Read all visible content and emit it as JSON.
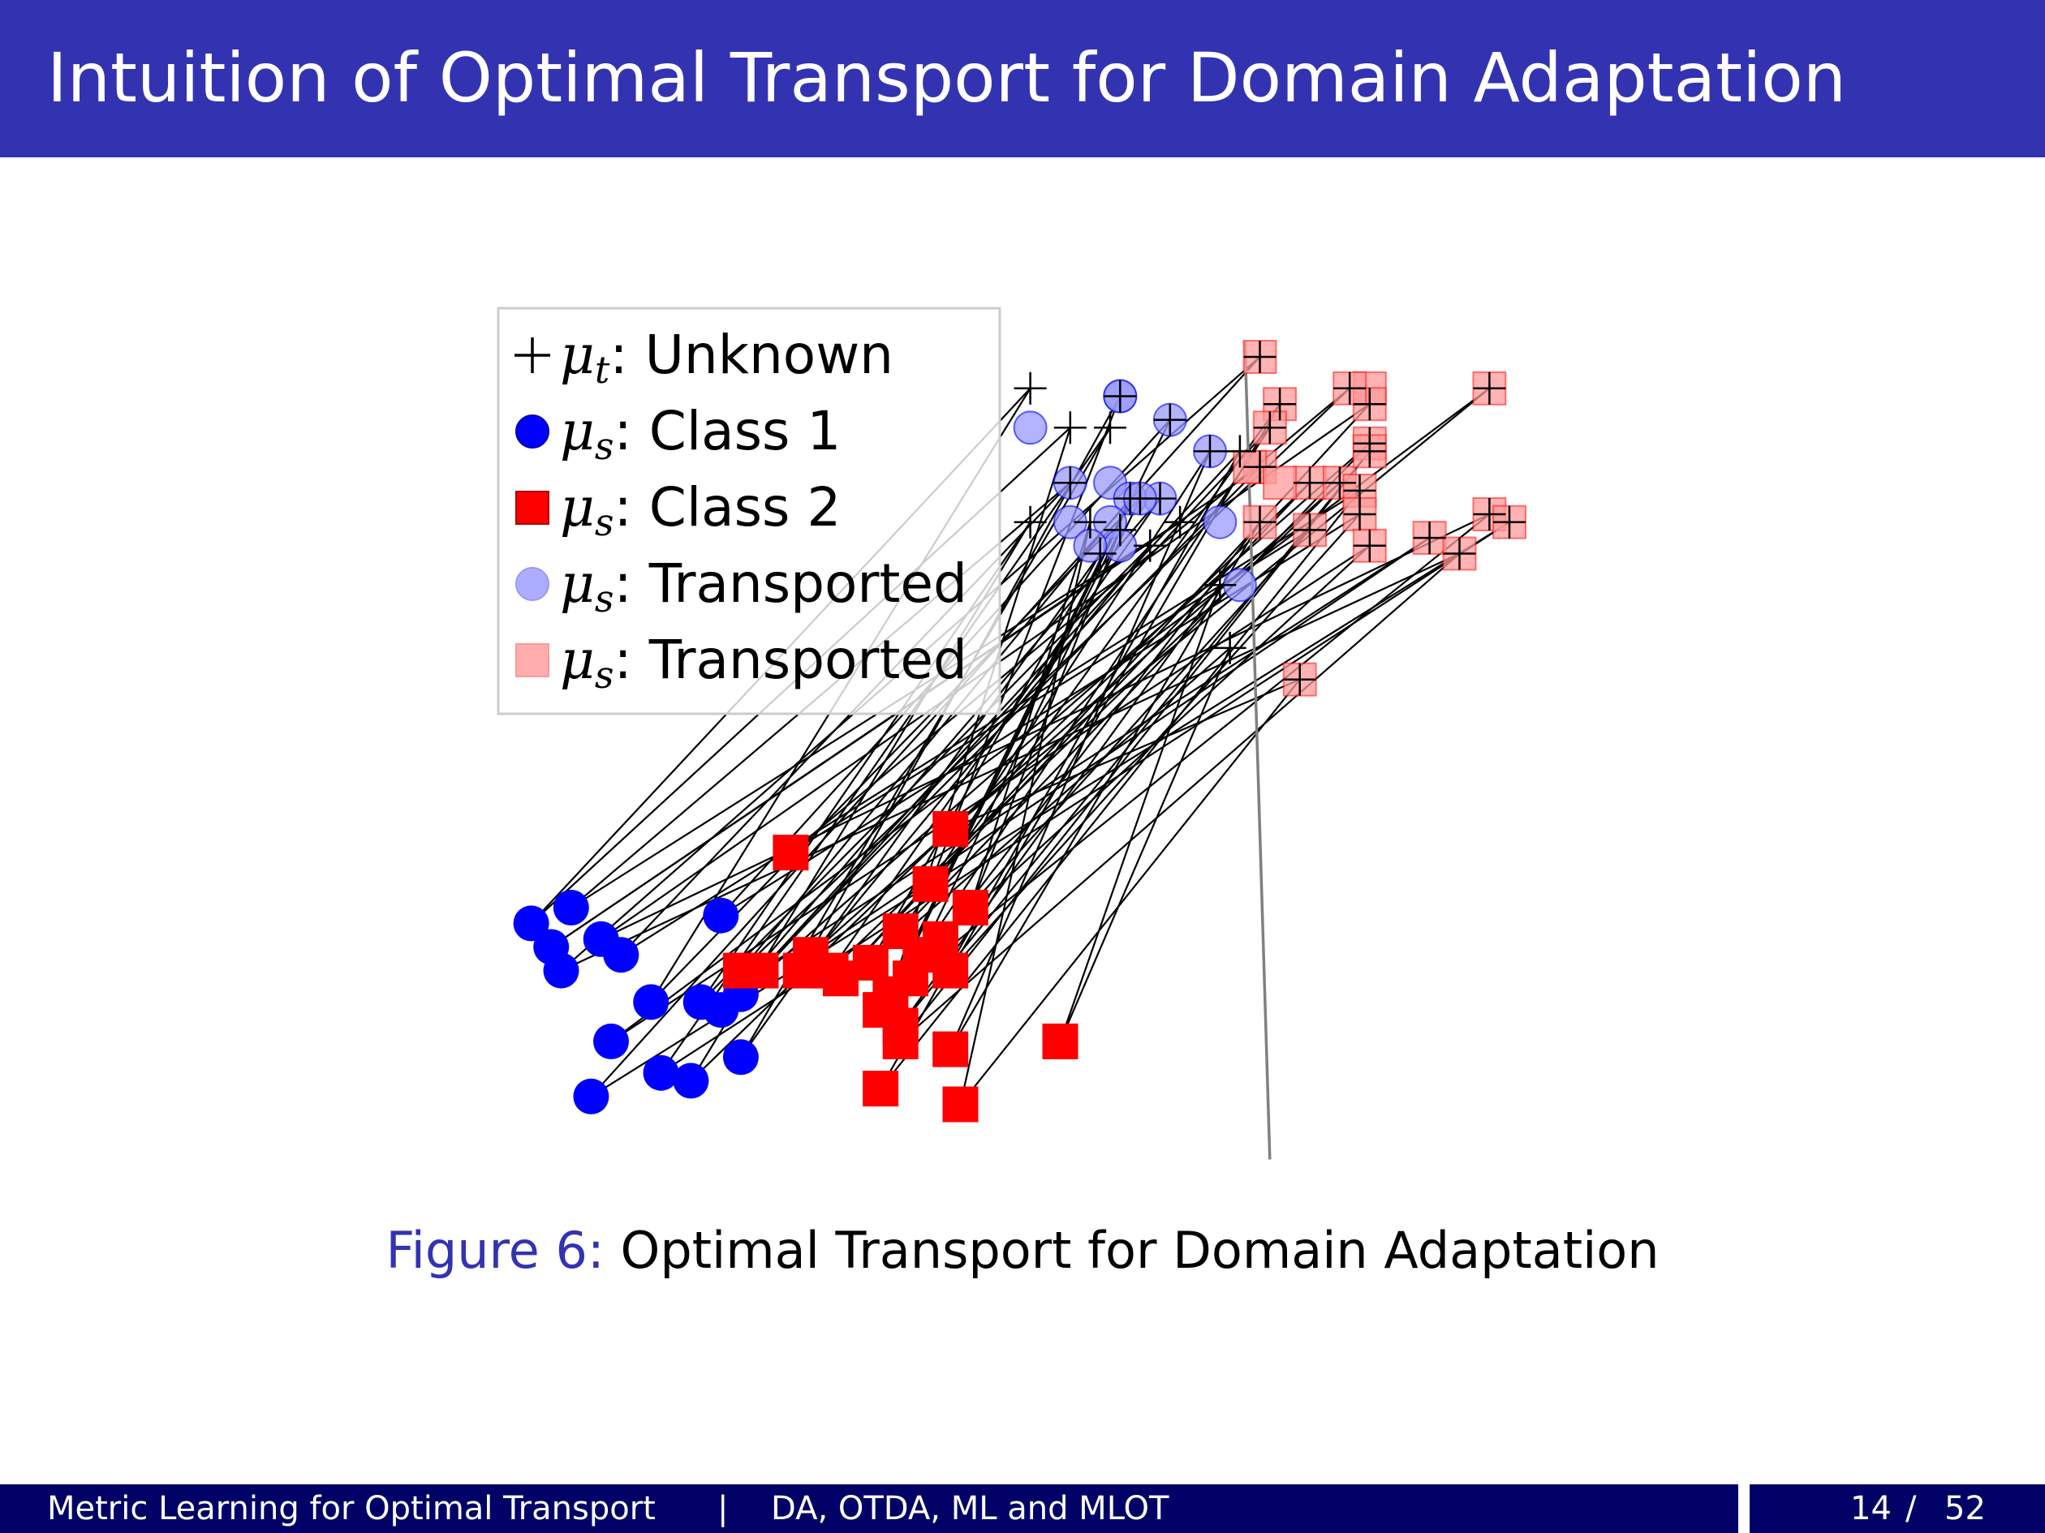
{
  "slide": {
    "title": "Intuition of Optimal Transport for Domain Adaptation",
    "caption_label": "Figure 6:",
    "caption_text": "Optimal Transport for Domain Adaptation"
  },
  "footer": {
    "presentation_title": "Metric Learning for Optimal Transport",
    "separator": "|",
    "section": "DA, OTDA, ML and MLOT",
    "page": "14",
    "page_separator": "/",
    "total_pages": "52"
  },
  "chart_data": {
    "type": "scatter",
    "axes_visible": false,
    "grid": false,
    "legend_position": "top-left",
    "xlim": [
      0,
      1
    ],
    "ylim": [
      0,
      1
    ],
    "legend": [
      {
        "symbol": "plus",
        "text_sym": "μ",
        "text_sub": "t",
        "text_rest": ": Unknown"
      },
      {
        "symbol": "circle",
        "text_sym": "μ",
        "text_sub": "s",
        "text_rest": ": Class 1"
      },
      {
        "symbol": "square",
        "text_sym": "μ",
        "text_sub": "s",
        "text_rest": ": Class 2"
      },
      {
        "symbol": "circle-transported",
        "text_sym": "μ",
        "text_sub": "s",
        "text_rest": ": Transported"
      },
      {
        "symbol": "square-transported",
        "text_sym": "μ",
        "text_sub": "s",
        "text_rest": ": Transported"
      }
    ],
    "colors": {
      "class1": "#0000ff",
      "class2": "#ff0000",
      "class1_transported": "#9999ff",
      "class2_transported": "#ff9999",
      "plus": "#000000",
      "line": "#000000",
      "boundary": "#808080"
    },
    "class1_source": [
      [
        0.02,
        0.28
      ],
      [
        0.06,
        0.3
      ],
      [
        0.04,
        0.25
      ],
      [
        0.09,
        0.26
      ],
      [
        0.11,
        0.24
      ],
      [
        0.05,
        0.22
      ],
      [
        0.21,
        0.29
      ],
      [
        0.14,
        0.18
      ],
      [
        0.19,
        0.18
      ],
      [
        0.23,
        0.19
      ],
      [
        0.1,
        0.13
      ],
      [
        0.15,
        0.09
      ],
      [
        0.23,
        0.11
      ],
      [
        0.18,
        0.08
      ],
      [
        0.08,
        0.06
      ],
      [
        0.21,
        0.17
      ]
    ],
    "class2_source": [
      [
        0.28,
        0.37
      ],
      [
        0.44,
        0.4
      ],
      [
        0.42,
        0.33
      ],
      [
        0.46,
        0.3
      ],
      [
        0.39,
        0.27
      ],
      [
        0.3,
        0.24
      ],
      [
        0.25,
        0.22
      ],
      [
        0.29,
        0.22
      ],
      [
        0.32,
        0.22
      ],
      [
        0.36,
        0.23
      ],
      [
        0.41,
        0.24
      ],
      [
        0.44,
        0.22
      ],
      [
        0.4,
        0.21
      ],
      [
        0.38,
        0.19
      ],
      [
        0.37,
        0.17
      ],
      [
        0.39,
        0.15
      ],
      [
        0.39,
        0.13
      ],
      [
        0.44,
        0.12
      ],
      [
        0.55,
        0.13
      ],
      [
        0.37,
        0.07
      ],
      [
        0.45,
        0.05
      ],
      [
        0.23,
        0.22
      ],
      [
        0.33,
        0.21
      ],
      [
        0.43,
        0.26
      ]
    ],
    "targets": [
      [
        0.52,
        0.96
      ],
      [
        0.61,
        0.95
      ],
      [
        0.66,
        0.92
      ],
      [
        0.56,
        0.91
      ],
      [
        0.6,
        0.91
      ],
      [
        0.73,
        0.88
      ],
      [
        0.7,
        0.88
      ],
      [
        0.56,
        0.84
      ],
      [
        0.65,
        0.82
      ],
      [
        0.63,
        0.82
      ],
      [
        0.62,
        0.82
      ],
      [
        0.52,
        0.79
      ],
      [
        0.58,
        0.79
      ],
      [
        0.61,
        0.78
      ],
      [
        0.67,
        0.79
      ],
      [
        0.59,
        0.75
      ],
      [
        0.64,
        0.76
      ],
      [
        0.71,
        0.71
      ],
      [
        0.75,
        1.0
      ],
      [
        0.84,
        0.96
      ],
      [
        0.77,
        0.94
      ],
      [
        0.86,
        0.94
      ],
      [
        0.76,
        0.91
      ],
      [
        0.86,
        0.89
      ],
      [
        0.86,
        0.88
      ],
      [
        0.75,
        0.86
      ],
      [
        0.8,
        0.84
      ],
      [
        0.83,
        0.84
      ],
      [
        0.85,
        0.83
      ],
      [
        0.85,
        0.8
      ],
      [
        0.98,
        0.96
      ],
      [
        0.75,
        0.79
      ],
      [
        0.8,
        0.78
      ],
      [
        0.86,
        0.76
      ],
      [
        0.92,
        0.77
      ],
      [
        0.95,
        0.75
      ],
      [
        0.98,
        0.8
      ],
      [
        1.0,
        0.79
      ],
      [
        0.72,
        0.63
      ],
      [
        0.79,
        0.59
      ]
    ],
    "class1_transported": [
      [
        0.61,
        0.95
      ],
      [
        0.52,
        0.91
      ],
      [
        0.56,
        0.84
      ],
      [
        0.6,
        0.84
      ],
      [
        0.65,
        0.82
      ],
      [
        0.62,
        0.82
      ],
      [
        0.56,
        0.79
      ],
      [
        0.6,
        0.79
      ],
      [
        0.61,
        0.76
      ],
      [
        0.71,
        0.79
      ],
      [
        0.58,
        0.76
      ],
      [
        0.7,
        0.88
      ],
      [
        0.63,
        0.82
      ],
      [
        0.73,
        0.71
      ],
      [
        0.61,
        0.95
      ],
      [
        0.66,
        0.92
      ]
    ],
    "class2_transported": [
      [
        0.75,
        1.0
      ],
      [
        0.86,
        0.96
      ],
      [
        0.77,
        0.94
      ],
      [
        0.86,
        0.94
      ],
      [
        0.76,
        0.91
      ],
      [
        0.86,
        0.89
      ],
      [
        0.75,
        0.86
      ],
      [
        0.8,
        0.84
      ],
      [
        0.83,
        0.84
      ],
      [
        0.85,
        0.83
      ],
      [
        0.85,
        0.8
      ],
      [
        0.98,
        0.96
      ],
      [
        0.75,
        0.79
      ],
      [
        0.8,
        0.78
      ],
      [
        0.86,
        0.76
      ],
      [
        0.92,
        0.77
      ],
      [
        0.95,
        0.75
      ],
      [
        0.98,
        0.8
      ],
      [
        1.0,
        0.79
      ],
      [
        0.79,
        0.59
      ],
      [
        0.86,
        0.88
      ],
      [
        0.84,
        0.96
      ],
      [
        0.74,
        0.86
      ],
      [
        0.77,
        0.84
      ]
    ],
    "boundary": [
      [
        0.735,
        1.02
      ],
      [
        0.76,
        -0.02
      ]
    ]
  }
}
